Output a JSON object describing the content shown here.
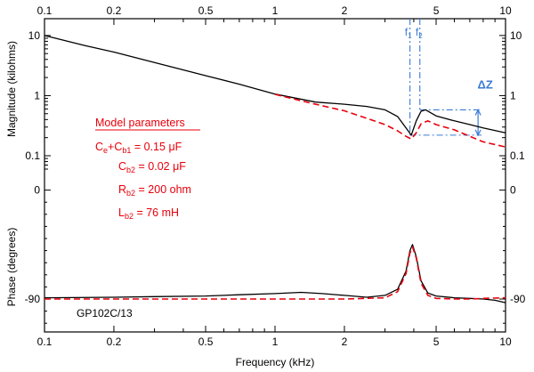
{
  "chart_data": {
    "type": "line",
    "xlabel": "Frequency (kHz)",
    "xscale": "log",
    "xlim": [
      0.1,
      10
    ],
    "x_ticks": [
      {
        "label": "0.1",
        "value": 0.1
      },
      {
        "label": "0.2",
        "value": 0.2
      },
      {
        "label": "0.5",
        "value": 0.5
      },
      {
        "label": "1",
        "value": 1
      },
      {
        "label": "2",
        "value": 2
      },
      {
        "label": "5",
        "value": 5
      },
      {
        "label": "10",
        "value": 10
      }
    ],
    "magnitude_panel": {
      "ylabel": "Magnitude (kilohms)",
      "yscale": "log",
      "ylim": [
        0.06,
        14
      ],
      "y_ticks": [
        {
          "label": "10",
          "value": 10
        },
        {
          "label": "1",
          "value": 1
        },
        {
          "label": "0.1",
          "value": 0.1
        }
      ],
      "series": [
        {
          "style": "solid",
          "color": "#000000",
          "x": [
            0.1,
            0.15,
            0.2,
            0.3,
            0.5,
            0.7,
            1.0,
            1.5,
            2.0,
            2.5,
            3.0,
            3.4,
            3.7,
            3.9,
            4.1,
            4.3,
            4.5,
            5.0,
            6.0,
            7.0,
            8.0,
            10.0
          ],
          "y": [
            10.0,
            6.8,
            5.3,
            3.55,
            2.15,
            1.55,
            1.06,
            0.78,
            0.72,
            0.66,
            0.58,
            0.45,
            0.29,
            0.22,
            0.38,
            0.55,
            0.58,
            0.46,
            0.38,
            0.33,
            0.29,
            0.24
          ]
        },
        {
          "style": "dashed",
          "color": "#e8000b",
          "x": [
            1.0,
            1.3,
            1.6,
            2.0,
            2.5,
            3.0,
            3.4,
            3.7,
            3.9,
            4.1,
            4.3,
            4.6,
            5.0,
            6.0,
            7.0,
            8.0,
            10.0
          ],
          "y": [
            1.05,
            0.82,
            0.68,
            0.56,
            0.42,
            0.33,
            0.26,
            0.21,
            0.19,
            0.24,
            0.34,
            0.38,
            0.33,
            0.27,
            0.21,
            0.17,
            0.14
          ]
        }
      ],
      "annotations": {
        "f1_label": "f",
        "f1_sub": "1",
        "f1_value": 3.85,
        "f2_label": "f",
        "f2_sub": "2",
        "f2_value": 4.25,
        "dz_label": "ΔZ",
        "dz_from": 0.22,
        "dz_to": 0.58
      }
    },
    "phase_panel": {
      "ylabel": "Phase (degrees)",
      "ylim": [
        -115,
        10
      ],
      "y_ticks": [
        {
          "label": "0",
          "value": 0
        },
        {
          "label": "-90",
          "value": -90
        }
      ],
      "series": [
        {
          "style": "solid",
          "color": "#000000",
          "x": [
            0.1,
            0.2,
            0.3,
            0.5,
            0.7,
            1.0,
            1.3,
            1.6,
            2.0,
            2.5,
            3.0,
            3.4,
            3.7,
            3.85,
            3.95,
            4.1,
            4.3,
            4.6,
            5.0,
            6.0,
            7.0,
            8.0,
            9.0,
            10.0
          ],
          "y": [
            -89,
            -88.5,
            -88,
            -87.5,
            -86.5,
            -85.5,
            -84.5,
            -85.5,
            -87,
            -88.5,
            -87,
            -82,
            -67,
            -50,
            -45,
            -55,
            -75,
            -85,
            -87.5,
            -89,
            -89.5,
            -90,
            -91,
            -93
          ]
        },
        {
          "style": "dashed",
          "color": "#e8000b",
          "x": [
            0.1,
            0.3,
            0.7,
            1.0,
            2.0,
            3.0,
            3.4,
            3.7,
            3.85,
            3.95,
            4.1,
            4.3,
            4.6,
            5.0,
            6.0,
            7.0,
            8.0,
            10.0
          ],
          "y": [
            -90,
            -90,
            -90,
            -90,
            -90,
            -89,
            -84,
            -69,
            -52,
            -47,
            -56,
            -77,
            -87,
            -89.5,
            -90,
            -90,
            -89.5,
            -89
          ]
        }
      ]
    },
    "legend_box": {
      "title": "Model parameters",
      "lines": [
        {
          "main_a": "C",
          "sub_a": "e",
          "main_b": "+C",
          "sub_b": "b1",
          "rest": "= 0.15  μF"
        },
        {
          "main_a": "C",
          "sub_a": "b2",
          "rest": "= 0.02  μF"
        },
        {
          "main_a": "R",
          "sub_a": "b2",
          "rest": "= 200 ohm"
        },
        {
          "main_a": "L",
          "sub_a": "b2",
          "rest": "= 76  mH"
        }
      ]
    },
    "specimen_label": "GP102C/13"
  }
}
